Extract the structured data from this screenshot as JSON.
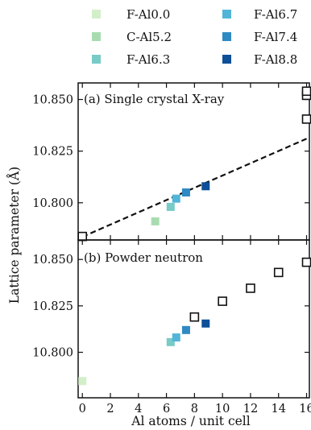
{
  "chart_data": {
    "type": "scatter",
    "legend": {
      "placement": "top",
      "entries": [
        {
          "name": "F-Al0.0",
          "color": "#d3efc9"
        },
        {
          "name": "C-Al5.2",
          "color": "#a8dcb0"
        },
        {
          "name": "F-Al6.3",
          "color": "#78cbc7"
        },
        {
          "name": "F-Al6.7",
          "color": "#52b5d8"
        },
        {
          "name": "F-Al7.4",
          "color": "#2f89c2"
        },
        {
          "name": "F-Al8.8",
          "color": "#0d4f98"
        }
      ]
    },
    "xlabel": "Al atoms / unit cell",
    "ylabel": "Lattice parameter (Å)",
    "xlim": [
      -0.3,
      16.2
    ],
    "xticks": [
      "0",
      "2",
      "4",
      "6",
      "8",
      "10",
      "12",
      "14",
      "16"
    ],
    "grid": false,
    "panels": [
      {
        "label": "(a) Single crystal X-ray",
        "ylim": [
          10.782,
          10.858
        ],
        "yticks": [
          "10.800",
          "10.825",
          "10.850"
        ],
        "points": [
          {
            "name": "C-Al5.2",
            "x": 5.2,
            "y": 10.791,
            "color": "#a8dcb0"
          },
          {
            "name": "F-Al6.3",
            "x": 6.3,
            "y": 10.798,
            "color": "#78cbc7"
          },
          {
            "name": "F-Al6.7",
            "x": 6.7,
            "y": 10.802,
            "color": "#52b5d8"
          },
          {
            "name": "F-Al7.4",
            "x": 7.4,
            "y": 10.805,
            "color": "#2f89c2"
          },
          {
            "name": "F-Al8.8",
            "x": 8.8,
            "y": 10.808,
            "color": "#0d4f98"
          }
        ],
        "open_points": [
          {
            "x": 0,
            "y": 10.7837
          },
          {
            "x": 16,
            "y": 10.8405
          },
          {
            "x": 16,
            "y": 10.852
          },
          {
            "x": 16,
            "y": 10.854
          }
        ],
        "fit_line": {
          "x": [
            0,
            16
          ],
          "y": [
            10.7835,
            10.831
          ]
        }
      },
      {
        "label": "(b) Powder neutron",
        "ylim": [
          10.7755,
          10.8605
        ],
        "yticks": [
          "10.800",
          "10.825",
          "10.850"
        ],
        "points": [
          {
            "name": "F-Al0.0",
            "x": 0,
            "y": 10.7845,
            "color": "#d3efc9"
          },
          {
            "name": "F-Al6.3",
            "x": 6.3,
            "y": 10.8055,
            "color": "#78cbc7"
          },
          {
            "name": "F-Al6.7",
            "x": 6.7,
            "y": 10.808,
            "color": "#52b5d8"
          },
          {
            "name": "F-Al7.4",
            "x": 7.4,
            "y": 10.812,
            "color": "#2f89c2"
          },
          {
            "name": "F-Al8.8",
            "x": 8.8,
            "y": 10.8155,
            "color": "#0d4f98"
          }
        ],
        "open_points": [
          {
            "x": 8,
            "y": 10.819
          },
          {
            "x": 10,
            "y": 10.8275
          },
          {
            "x": 12,
            "y": 10.8345
          },
          {
            "x": 14,
            "y": 10.843
          },
          {
            "x": 16,
            "y": 10.8485
          }
        ]
      }
    ]
  }
}
